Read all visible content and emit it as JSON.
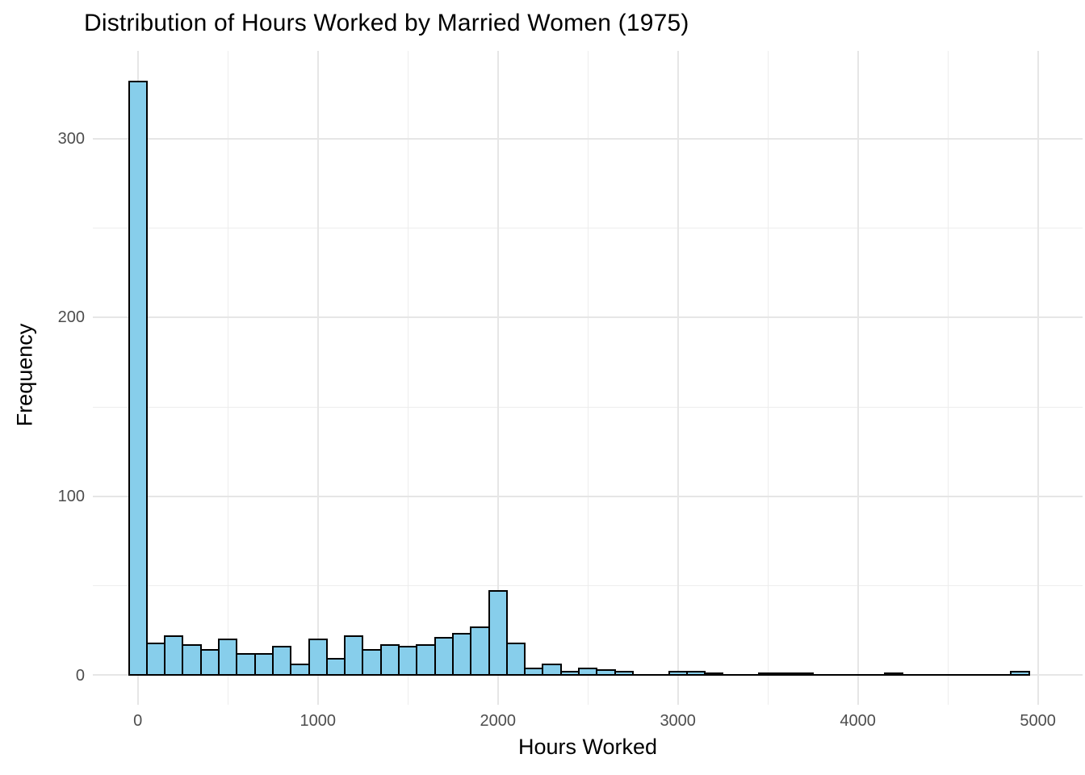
{
  "page": {
    "background": "#FFFFFF"
  },
  "chart_data": {
    "type": "bar",
    "subtype": "histogram",
    "title": "Distribution of Hours Worked by Married Women (1975)",
    "xlabel": "Hours Worked",
    "ylabel": "Frequency",
    "bin_width": 100,
    "first_bin_center": 0,
    "bin_centers": [
      0,
      100,
      200,
      300,
      400,
      500,
      600,
      700,
      800,
      900,
      1000,
      1100,
      1200,
      1300,
      1400,
      1500,
      1600,
      1700,
      1800,
      1900,
      2000,
      2100,
      2200,
      2300,
      2400,
      2500,
      2600,
      2700,
      2800,
      2900,
      3000,
      3100,
      3200,
      3300,
      3400,
      3500,
      3600,
      3700,
      3800,
      3900,
      4000,
      4100,
      4200,
      4300,
      4400,
      4500,
      4600,
      4700,
      4800,
      4900
    ],
    "counts": [
      332,
      18,
      22,
      17,
      14,
      20,
      12,
      12,
      16,
      6,
      20,
      9,
      22,
      14,
      17,
      16,
      17,
      21,
      23,
      27,
      47,
      18,
      4,
      6,
      2,
      4,
      3,
      2,
      0,
      0,
      2,
      2,
      1,
      0,
      0,
      1,
      1,
      1,
      0,
      0,
      0,
      0,
      1,
      0,
      0,
      0,
      0,
      0,
      0,
      2
    ],
    "x_ticks": [
      0,
      1000,
      2000,
      3000,
      4000,
      5000
    ],
    "y_ticks": [
      0,
      100,
      200,
      300
    ],
    "x_minor_ticks": [
      500,
      1500,
      2500,
      3500,
      4500
    ],
    "y_minor_ticks": [
      50,
      150,
      250
    ],
    "xlim": [
      -250,
      5250
    ],
    "ylim": [
      -16.6,
      349
    ],
    "grid": "major and minor gridlines, light gray, no axis lines, no tick marks",
    "legend": "none",
    "colors": {
      "bar_fill": "#87CEEB",
      "bar_stroke": "#000000",
      "grid_major": "#E6E6E6",
      "grid_minor": "#EDEDED",
      "axis_text": "#4D4D4D",
      "title_text": "#000000",
      "background": "#FFFFFF"
    }
  }
}
